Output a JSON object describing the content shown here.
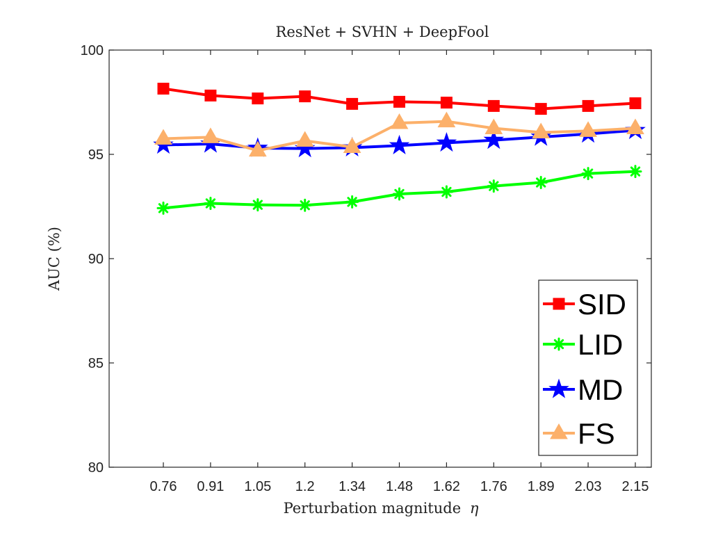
{
  "chart_data": {
    "type": "line",
    "title": "ResNet + SVHN + DeepFool",
    "xlabel": "Perturbation magnitude",
    "xlabel_symbol": "η",
    "ylabel": "AUC (%)",
    "categories": [
      "0.76",
      "0.91",
      "1.05",
      "1.2",
      "1.34",
      "1.48",
      "1.62",
      "1.76",
      "1.89",
      "2.03",
      "2.15"
    ],
    "ylim": [
      80,
      100
    ],
    "yticks": [
      "80",
      "85",
      "90",
      "95",
      "100"
    ],
    "legend_position": "bottom-right",
    "series": [
      {
        "name": "SID",
        "color": "#ff0000",
        "marker": "square",
        "values": [
          98.15,
          97.82,
          97.68,
          97.78,
          97.42,
          97.52,
          97.48,
          97.32,
          97.18,
          97.32,
          97.45
        ]
      },
      {
        "name": "LID",
        "color": "#00ff00",
        "marker": "asterisk",
        "values": [
          92.42,
          92.65,
          92.58,
          92.56,
          92.72,
          93.1,
          93.2,
          93.48,
          93.65,
          94.08,
          94.18
        ]
      },
      {
        "name": "MD",
        "color": "#0000ff",
        "marker": "star",
        "values": [
          95.45,
          95.5,
          95.3,
          95.28,
          95.32,
          95.42,
          95.55,
          95.68,
          95.83,
          95.98,
          96.15
        ]
      },
      {
        "name": "FS",
        "color": "#fcb06a",
        "marker": "triangle",
        "values": [
          95.75,
          95.82,
          95.18,
          95.65,
          95.35,
          96.5,
          96.58,
          96.25,
          96.05,
          96.12,
          96.25
        ]
      }
    ]
  }
}
